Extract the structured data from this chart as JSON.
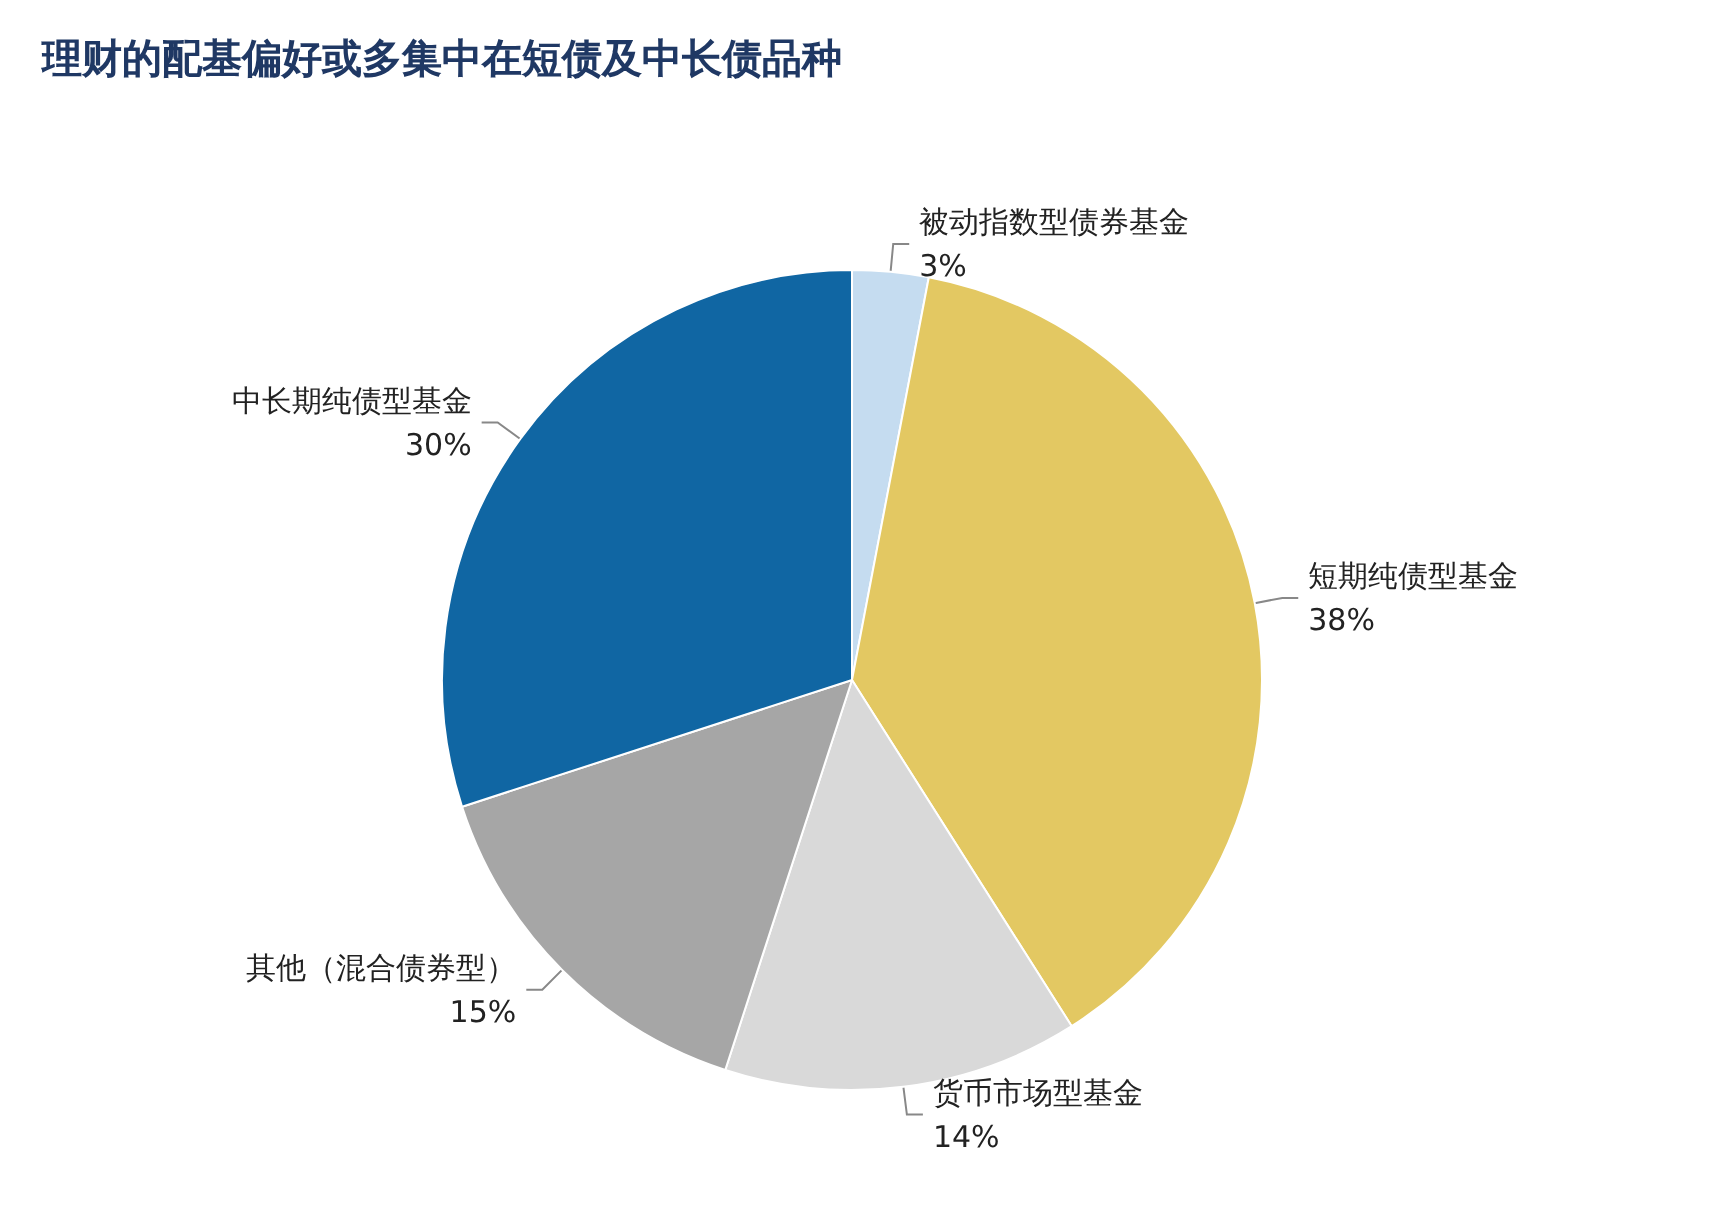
{
  "chart_data": {
    "type": "pie",
    "title": "理财的配基偏好或多集中在短债及中长债品种",
    "categories": [
      "被动指数型债券基金",
      "短期纯债型基金",
      "货币市场型基金",
      "其他（混合债券型）",
      "中长期纯债型基金"
    ],
    "values": [
      3,
      38,
      14,
      15,
      30
    ],
    "colors": [
      "#c5dcf0",
      "#e3c862",
      "#d9d9d9",
      "#a6a6a6",
      "#1066a3"
    ],
    "value_labels": [
      "3%",
      "38%",
      "14%",
      "15%",
      "30%"
    ],
    "legend": false
  }
}
